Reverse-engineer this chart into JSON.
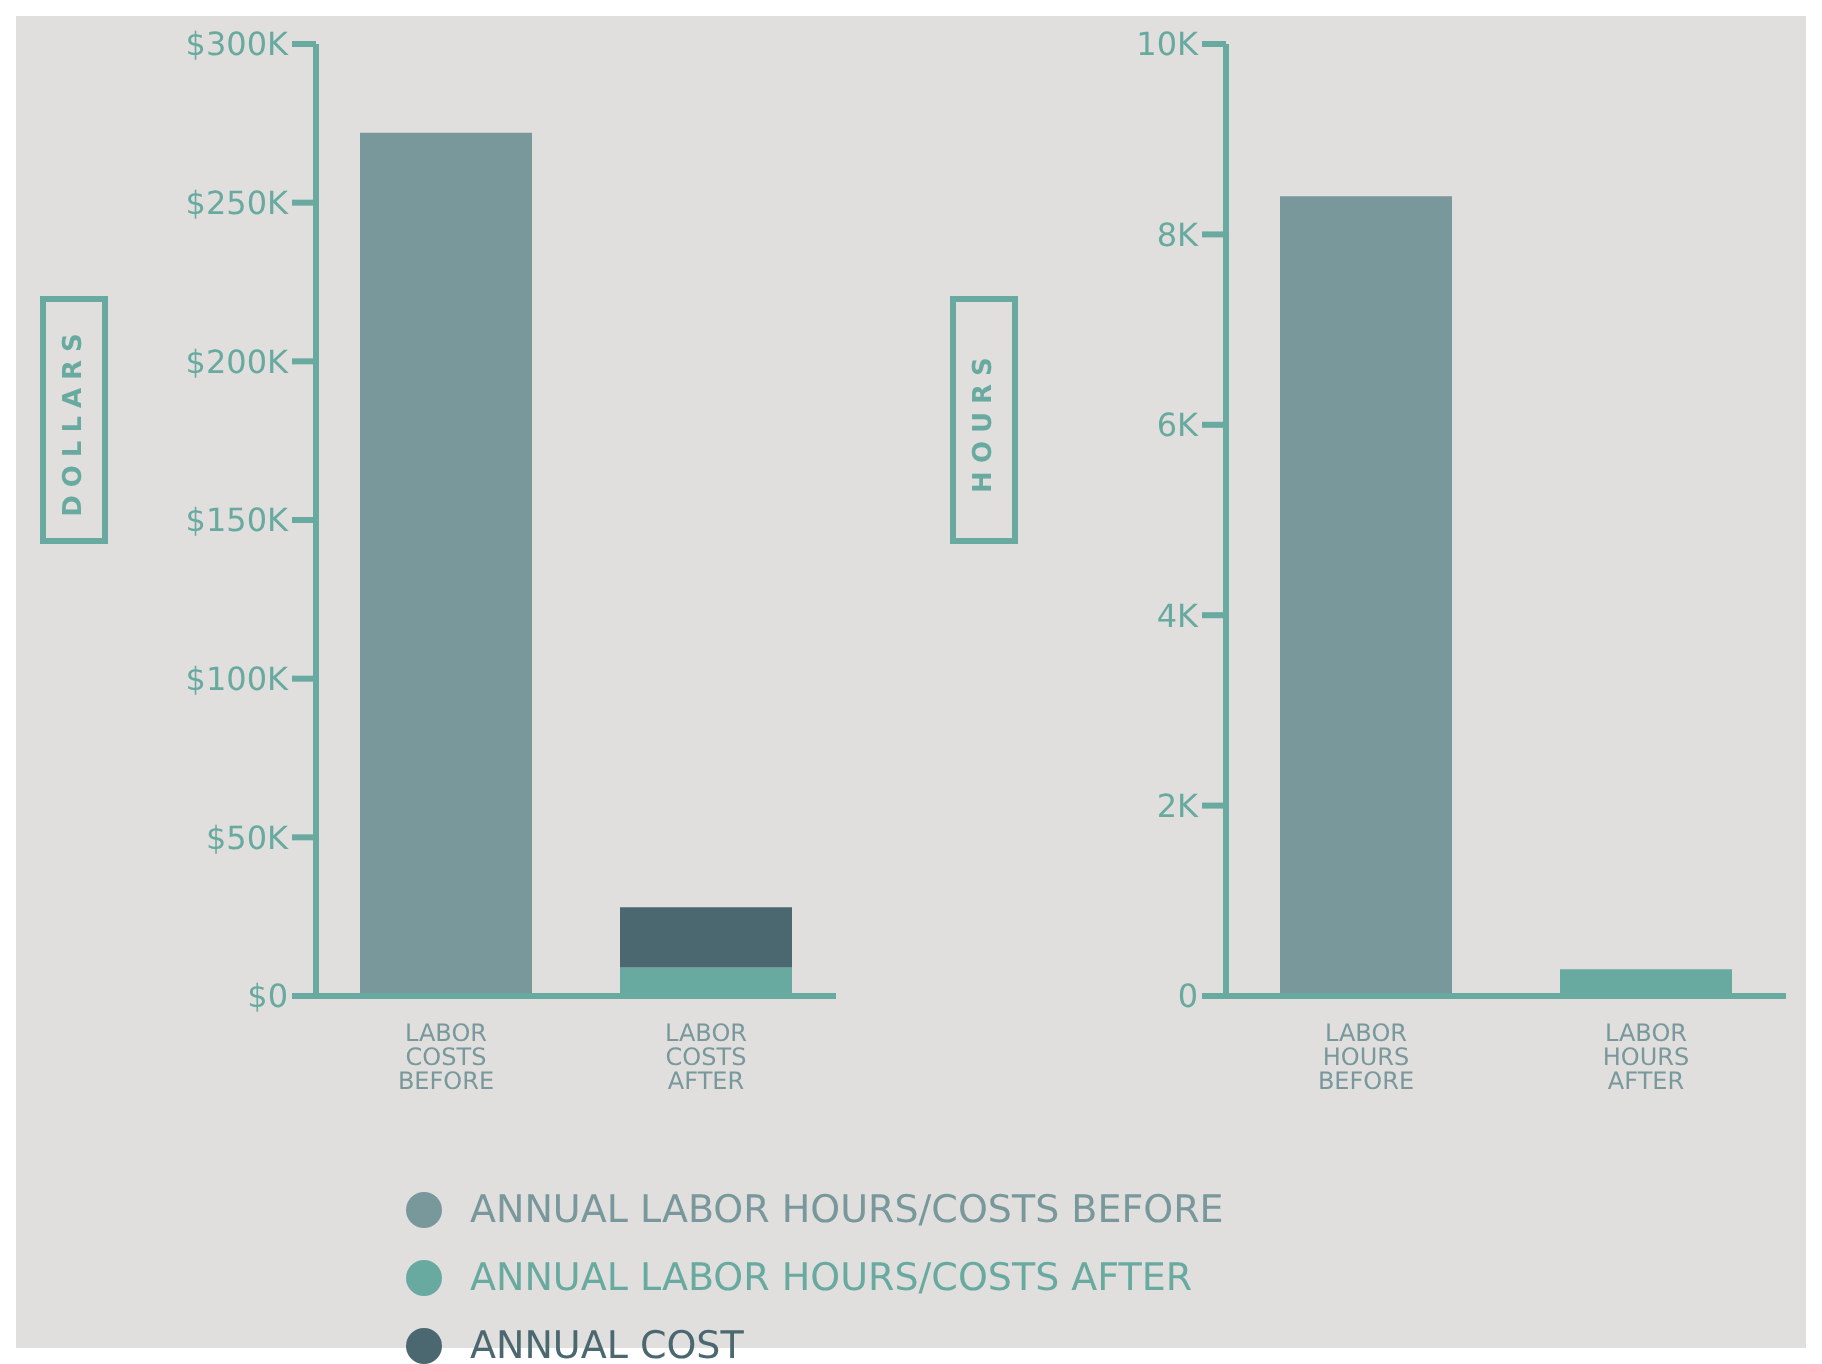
{
  "chart_data": [
    {
      "type": "bar",
      "categories": [
        "LABOR COSTS BEFORE",
        "LABOR COSTS AFTER"
      ],
      "ylabel": "DOLLARS",
      "stacked": true,
      "legend": "bottom",
      "ylim": [
        0,
        300000
      ],
      "yticks": [
        {
          "value": 0,
          "label": "$0"
        },
        {
          "value": 50000,
          "label": "$50K"
        },
        {
          "value": 100000,
          "label": "$100K"
        },
        {
          "value": 150000,
          "label": "$150K"
        },
        {
          "value": 200000,
          "label": "$200K"
        },
        {
          "value": 250000,
          "label": "$250K"
        },
        {
          "value": 300000,
          "label": "$300K"
        }
      ],
      "series": [
        {
          "name": "ANNUAL LABOR HOURS/COSTS BEFORE",
          "color": "#78989c",
          "values": [
            272000,
            null
          ]
        },
        {
          "name": "ANNUAL  LABOR HOURS/COSTS AFTER",
          "color": "#68aaa0",
          "values": [
            null,
            9000
          ]
        },
        {
          "name": "ANNUAL COST",
          "color": "#4b6870",
          "values": [
            null,
            19000
          ]
        }
      ]
    },
    {
      "type": "bar",
      "categories": [
        "LABOR HOURS BEFORE",
        "LABOR HOURS AFTER"
      ],
      "ylabel": "HOURS",
      "ylim": [
        0,
        10000
      ],
      "yticks": [
        0,
        {
          "value": 2000,
          "label": "2K"
        },
        {
          "value": 4000,
          "label": "4K"
        },
        {
          "value": 6000,
          "label": "6K"
        },
        {
          "value": 8000,
          "label": "8K"
        },
        {
          "value": 10000,
          "label": "10K"
        }
      ],
      "values": [
        8400,
        280
      ],
      "colors": [
        "#78989c",
        "#68aaa0"
      ]
    }
  ]
}
